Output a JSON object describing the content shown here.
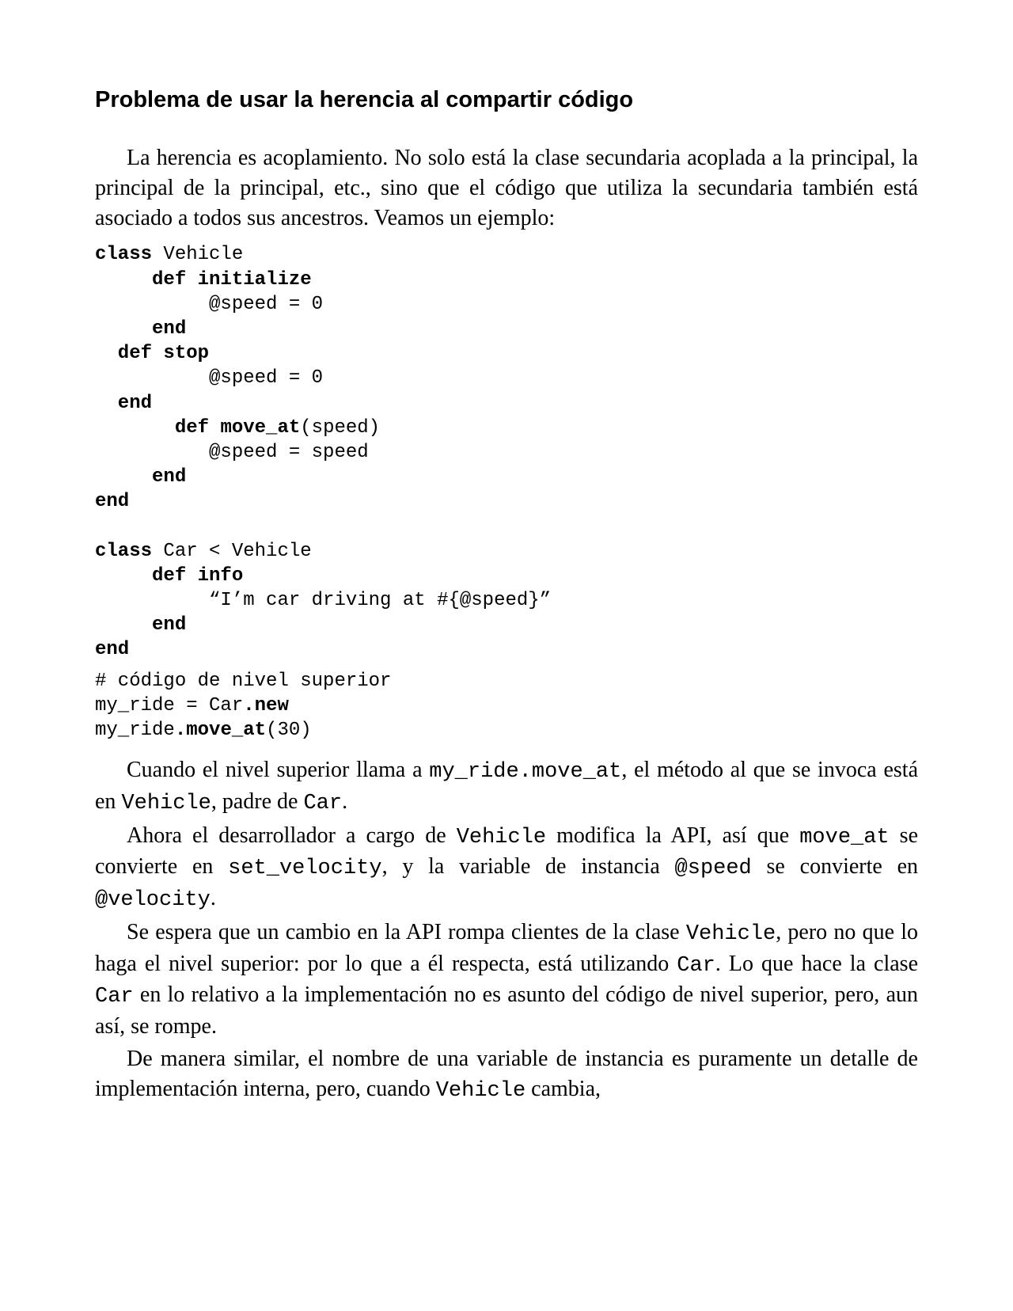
{
  "title": "Problema de usar la herencia al compartir código",
  "para1": "La herencia es acoplamiento. No solo está la clase secundaria acoplada a la principal, la principal de la principal, etc., sino que el código que utiliza la secundaria también está asociado a todos sus ancestros. Veamos un ejemplo:",
  "code": {
    "line1_class": "class",
    "line1_rest": " Vehicle",
    "line2": "     def initialize",
    "line3": "          @speed = 0",
    "line4": "     end",
    "line5": "  def stop",
    "line6": "          @speed = 0",
    "line7": "  end",
    "line8_pre": "       ",
    "line8_def": "def move_at",
    "line8_rest": "(speed)",
    "line9": "          @speed = speed",
    "line10": "     end",
    "line11": "end",
    "line12_class": "class",
    "line12_rest": " Car < Vehicle",
    "line13": "     def info",
    "line14": "          “I’m car driving at #{@speed}”",
    "line15": "     end",
    "line16": "end",
    "comment": "# código de nivel superior",
    "line17_a": "my_ride = Car",
    "line17_b": ".new",
    "line18_a": "my_ride",
    "line18_b": ".move_at",
    "line18_c": "(30)"
  },
  "p2": {
    "t1": "Cuando el nivel superior llama a ",
    "c1": "my_ride.move_at",
    "t2": ", el método al que se invoca está en ",
    "c2": "Vehicle",
    "t3": ", padre de ",
    "c3": "Car",
    "t4": "."
  },
  "p3": {
    "t1": "Ahora el desarrollador a cargo de ",
    "c1": "Vehicle",
    "t2": " modifica la API, así que ",
    "c2": "move_at",
    "t3": " se convierte en ",
    "c3": "set_velocity",
    "t4": ", y la variable de instancia ",
    "c4": "@speed",
    "t5": " se convierte en ",
    "c5": "@velocity",
    "t6": "."
  },
  "p4": {
    "t1": "Se espera que un cambio en la API rompa clientes de la clase ",
    "c1": "Vehicle",
    "t2": ", pero no que lo haga el nivel superior: por lo que a él respecta, está utilizando ",
    "c2": "Car",
    "t3": ". Lo que hace la clase ",
    "c3": "Car",
    "t4": " en lo relativo a la implementación no es asunto del código de nivel superior, pero, aun así, se rompe."
  },
  "p5": {
    "t1": "De manera similar, el nombre de una variable de instancia es puramente un detalle de implementación interna, pero, cuando ",
    "c1": "Vehicle",
    "t2": " cambia,"
  }
}
